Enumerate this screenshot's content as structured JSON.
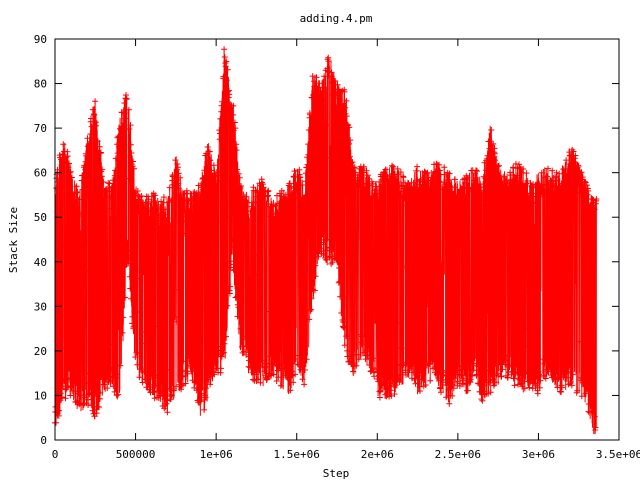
{
  "chart_data": {
    "type": "scatter",
    "title": "adding.4.pm",
    "xlabel": "Step",
    "ylabel": "Stack Size",
    "xlim": [
      0,
      3500000
    ],
    "ylim": [
      0,
      90
    ],
    "x_ticks": [
      0,
      500000,
      1000000,
      1500000,
      2000000,
      2500000,
      3000000,
      3500000
    ],
    "x_tick_labels": [
      "0",
      "500000",
      "1e+06",
      "1.5e+06",
      "2e+06",
      "2.5e+06",
      "3e+06",
      "3.5e+06"
    ],
    "y_ticks": [
      0,
      10,
      20,
      30,
      40,
      50,
      60,
      70,
      80,
      90
    ],
    "y_tick_labels": [
      "0",
      "10",
      "20",
      "30",
      "40",
      "50",
      "60",
      "70",
      "80",
      "90"
    ],
    "grid": false,
    "legend": "none",
    "marker": "+",
    "series_color": "#ff0000",
    "x_data_extent": [
      0,
      3360000
    ],
    "envelope": {
      "x": [
        0,
        50000,
        100000,
        150000,
        200000,
        250000,
        300000,
        350000,
        400000,
        450000,
        500000,
        550000,
        600000,
        650000,
        700000,
        750000,
        800000,
        850000,
        900000,
        950000,
        1000000,
        1050000,
        1100000,
        1150000,
        1200000,
        1250000,
        1300000,
        1350000,
        1400000,
        1450000,
        1500000,
        1550000,
        1600000,
        1650000,
        1700000,
        1750000,
        1800000,
        1850000,
        1900000,
        1950000,
        2000000,
        2050000,
        2100000,
        2150000,
        2200000,
        2250000,
        2300000,
        2350000,
        2400000,
        2450000,
        2500000,
        2550000,
        2600000,
        2650000,
        2700000,
        2750000,
        2800000,
        2850000,
        2900000,
        2950000,
        3000000,
        3050000,
        3100000,
        3150000,
        3200000,
        3250000,
        3300000,
        3350000
      ],
      "upper": [
        60,
        68,
        62,
        55,
        68,
        77,
        60,
        57,
        72,
        79,
        57,
        55,
        56,
        54,
        55,
        64,
        56,
        56,
        58,
        68,
        60,
        88,
        78,
        58,
        56,
        58,
        60,
        55,
        56,
        58,
        62,
        58,
        83,
        80,
        87,
        80,
        80,
        62,
        62,
        60,
        58,
        62,
        62,
        60,
        58,
        62,
        60,
        62,
        62,
        60,
        58,
        60,
        62,
        58,
        71,
        62,
        60,
        62,
        62,
        58,
        60,
        62,
        60,
        62,
        67,
        62,
        58,
        55
      ],
      "lower": [
        2,
        8,
        10,
        5,
        8,
        5,
        10,
        12,
        8,
        40,
        15,
        12,
        10,
        8,
        6,
        10,
        12,
        14,
        5,
        8,
        15,
        15,
        40,
        20,
        15,
        12,
        12,
        14,
        12,
        10,
        15,
        12,
        30,
        42,
        38,
        40,
        18,
        14,
        18,
        16,
        10,
        8,
        10,
        12,
        14,
        10,
        12,
        14,
        10,
        8,
        12,
        10,
        14,
        8,
        10,
        12,
        14,
        12,
        10,
        12,
        10,
        14,
        12,
        10,
        12,
        10,
        8,
        0
      ]
    }
  }
}
